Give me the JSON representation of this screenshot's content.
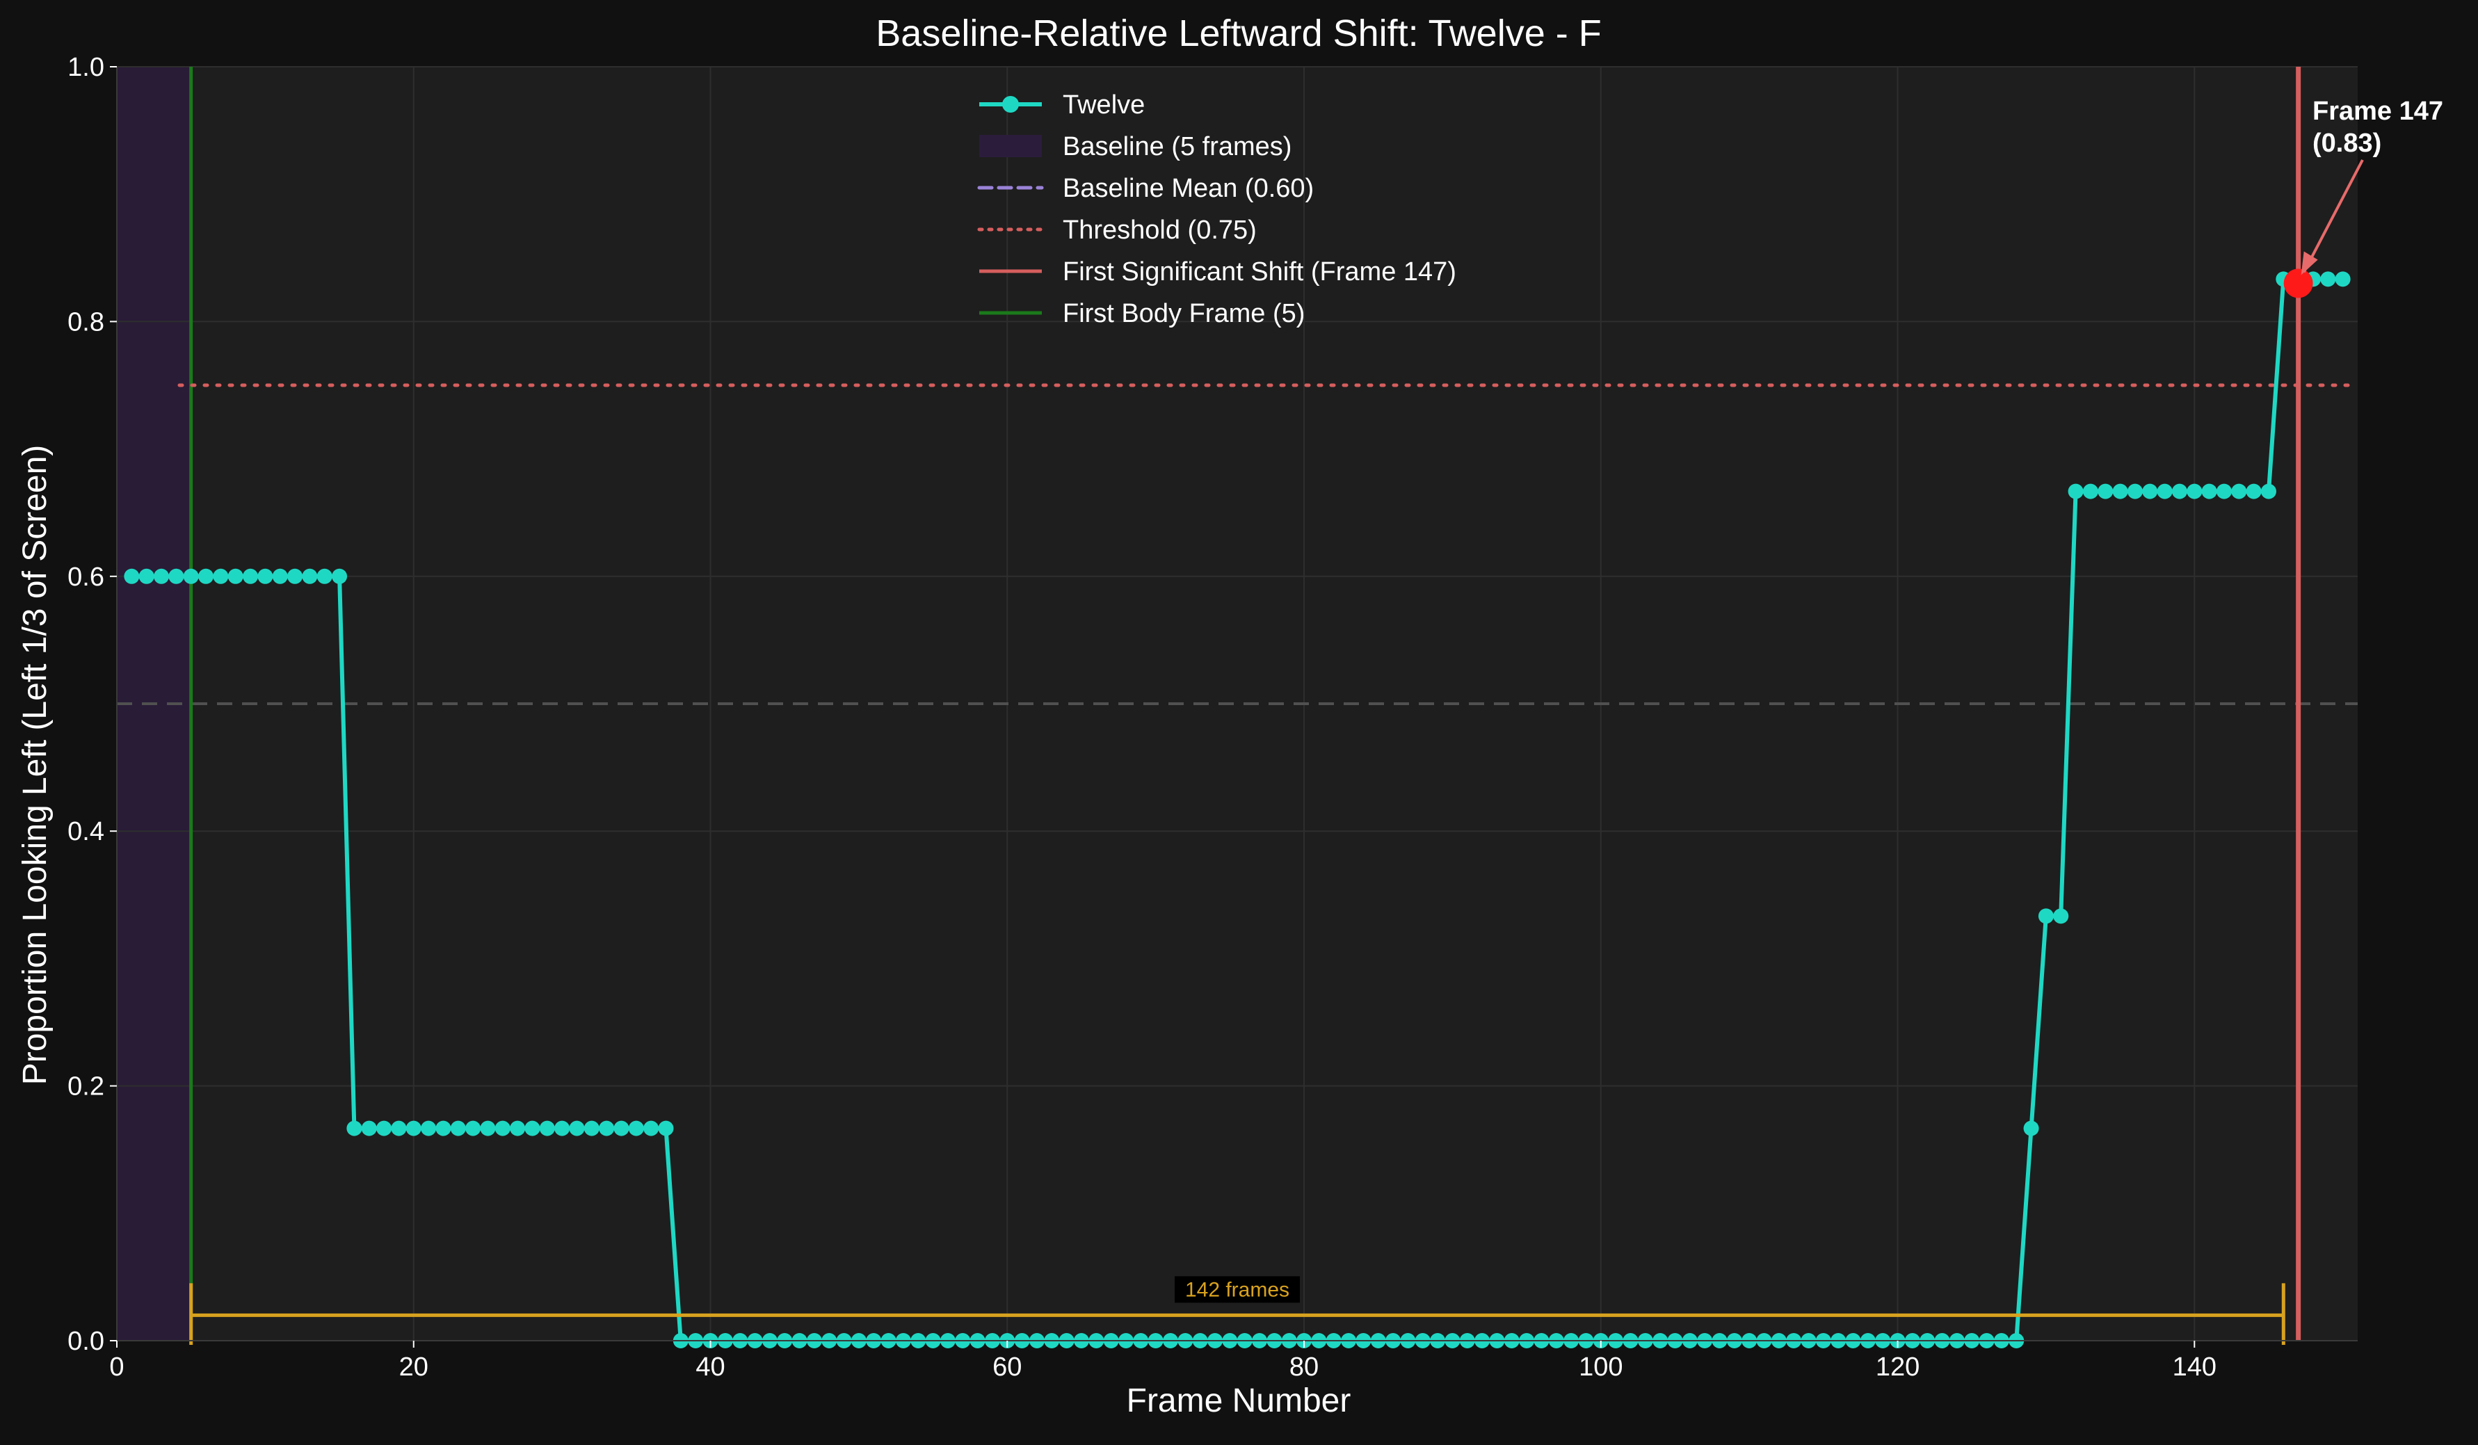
{
  "chart_data": {
    "type": "line",
    "title": "Baseline-Relative Leftward Shift: Twelve - F",
    "xlabel": "Frame Number",
    "ylabel": "Proportion Looking Left (Left 1/3 of Screen)",
    "xlim": [
      0,
      151
    ],
    "ylim": [
      0.0,
      1.0
    ],
    "x_ticks": [
      0,
      20,
      40,
      60,
      80,
      100,
      120,
      140
    ],
    "y_ticks": [
      0.0,
      0.2,
      0.4,
      0.6,
      0.8,
      1.0
    ],
    "x_tick_labels": [
      "0",
      "20",
      "40",
      "60",
      "80",
      "100",
      "120",
      "140"
    ],
    "y_tick_labels": [
      "0.0",
      "0.2",
      "0.4",
      "0.6",
      "0.8",
      "1.0"
    ],
    "grid": true,
    "legend_position": "top-center",
    "series": [
      {
        "name": "Twelve",
        "color": "#1fd8c4",
        "segments": [
          {
            "x_start": 1,
            "x_end": 15,
            "y": 0.6
          },
          {
            "x_start": 16,
            "x_end": 37,
            "y": 0.1667
          },
          {
            "x_start": 38,
            "x_end": 128,
            "y": 0.0
          },
          {
            "x_start": 129,
            "x_end": 129,
            "y": 0.1667
          },
          {
            "x_start": 130,
            "x_end": 131,
            "y": 0.3333
          },
          {
            "x_start": 132,
            "x_end": 145,
            "y": 0.6667
          },
          {
            "x_start": 146,
            "x_end": 150,
            "y": 0.8333
          }
        ]
      }
    ],
    "legend": [
      {
        "label": "Twelve",
        "kind": "line-marker",
        "color": "#1fd8c4"
      },
      {
        "label": "Baseline (5 frames)",
        "kind": "patch",
        "color": "#2c1c3c"
      },
      {
        "label": "Baseline Mean (0.60)",
        "kind": "dashed",
        "color": "#9b83d8"
      },
      {
        "label": "Threshold (0.75)",
        "kind": "dotted",
        "color": "#d65e5e"
      },
      {
        "label": "First Significant Shift (Frame 147)",
        "kind": "solid",
        "color": "#d65e5e"
      },
      {
        "label": "First Body Frame (5)",
        "kind": "solid",
        "color": "#1a7a1a"
      }
    ],
    "baseline_span": [
      0,
      5
    ],
    "reference_line_y": 0.5,
    "threshold": 0.75,
    "first_significant_shift_frame": 147,
    "first_body_frame": 5,
    "highlight_point": {
      "x": 147,
      "y": 0.83
    },
    "annotation": {
      "title": "Frame 147",
      "value": "(0.83)"
    },
    "bracket": {
      "x_start": 5,
      "x_end": 146,
      "y": 0.02,
      "label": "142 frames",
      "color": "#d8a21f"
    }
  }
}
